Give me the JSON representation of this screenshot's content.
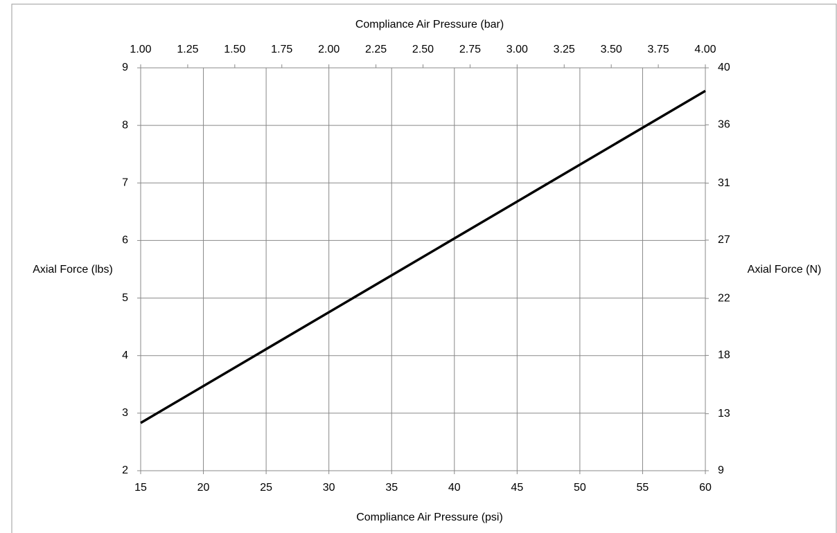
{
  "chart_data": {
    "type": "line",
    "x_label": "Compliance Air Pressure (psi)",
    "x2_label": "Compliance Air Pressure (bar)",
    "y_label": "Axial Force (lbs)",
    "y2_label": "Axial Force (N)",
    "x": [
      15,
      60
    ],
    "series": [
      {
        "color": "#000000",
        "values": [
          2.83,
          8.6
        ]
      }
    ],
    "xlim": [
      15,
      60
    ],
    "xticks": [
      15,
      20,
      25,
      30,
      35,
      40,
      45,
      50,
      55,
      60
    ],
    "x2lim": [
      1,
      4
    ],
    "x2ticks": [
      {
        "value": 1,
        "label": "1.00"
      },
      1.25,
      {
        "value": 1.5,
        "label": "1.50"
      },
      1.75,
      {
        "value": 2,
        "label": "2.00"
      },
      2.25,
      {
        "value": 2.5,
        "label": "2.50"
      },
      2.75,
      {
        "value": 3,
        "label": "3.00"
      },
      3.25,
      {
        "value": 3.5,
        "label": "3.50"
      },
      3.75,
      {
        "value": 4,
        "label": "4.00"
      }
    ],
    "ylim": [
      2,
      9
    ],
    "yticks": [
      2,
      3,
      4,
      5,
      6,
      7,
      8,
      9
    ],
    "y2lim": [
      8.9,
      40.0
    ],
    "y2ticks": [
      {
        "value": 8.9,
        "label": "9"
      },
      {
        "value": 13.3,
        "label": "13"
      },
      {
        "value": 17.8,
        "label": "18"
      },
      {
        "value": 22.2,
        "label": "22"
      },
      {
        "value": 26.7,
        "label": "27"
      },
      {
        "value": 31.1,
        "label": "31"
      },
      {
        "value": 35.6,
        "label": "36"
      },
      {
        "value": 40.0,
        "label": "40"
      }
    ],
    "grid": true
  }
}
